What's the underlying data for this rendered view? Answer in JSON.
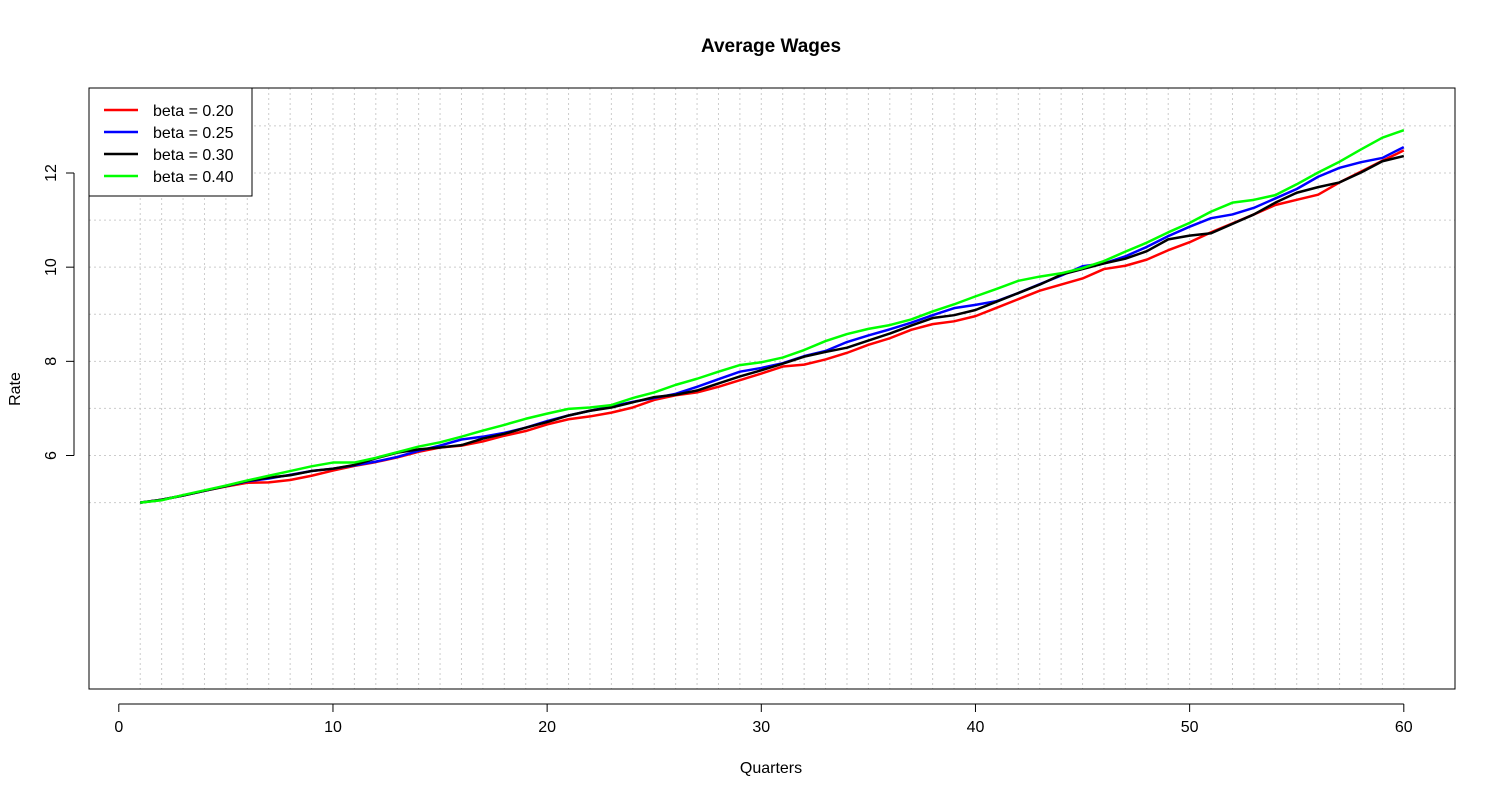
{
  "chart_data": {
    "type": "line",
    "title": "Average Wages",
    "xlabel": "Quarters",
    "ylabel": "Rate",
    "xlim": [
      1,
      60
    ],
    "ylim": [
      5,
      13
    ],
    "x_ticks": [
      0,
      10,
      20,
      30,
      40,
      50,
      60
    ],
    "y_ticks": [
      6,
      8,
      10,
      12
    ],
    "grid": true,
    "legend_position": "top-left",
    "x": [
      1,
      2,
      3,
      4,
      5,
      6,
      7,
      8,
      9,
      10,
      11,
      12,
      13,
      14,
      15,
      16,
      17,
      18,
      19,
      20,
      21,
      22,
      23,
      24,
      25,
      26,
      27,
      28,
      29,
      30,
      31,
      32,
      33,
      34,
      35,
      36,
      37,
      38,
      39,
      40,
      41,
      42,
      43,
      44,
      45,
      46,
      47,
      48,
      49,
      50,
      51,
      52,
      53,
      54,
      55,
      56,
      57,
      58,
      59,
      60
    ],
    "series": [
      {
        "name": "beta = 0.20",
        "color": "#ff0000",
        "values": [
          5.0,
          5.06,
          5.15,
          5.25,
          5.34,
          5.42,
          5.43,
          5.48,
          5.57,
          5.68,
          5.78,
          5.86,
          5.96,
          6.08,
          6.17,
          6.21,
          6.3,
          6.42,
          6.52,
          6.66,
          6.77,
          6.83,
          6.91,
          7.02,
          7.18,
          7.28,
          7.34,
          7.46,
          7.6,
          7.74,
          7.89,
          7.93,
          8.04,
          8.18,
          8.35,
          8.49,
          8.67,
          8.79,
          8.85,
          8.96,
          9.14,
          9.32,
          9.5,
          9.63,
          9.76,
          9.96,
          10.03,
          10.16,
          10.36,
          10.53,
          10.74,
          10.93,
          11.12,
          11.32,
          11.43,
          11.54,
          11.8,
          12.03,
          12.26,
          12.48
        ]
      },
      {
        "name": "beta = 0.25",
        "color": "#0000ff",
        "values": [
          5.0,
          5.06,
          5.15,
          5.25,
          5.35,
          5.45,
          5.51,
          5.59,
          5.67,
          5.72,
          5.79,
          5.87,
          5.97,
          6.1,
          6.21,
          6.34,
          6.4,
          6.48,
          6.59,
          6.73,
          6.85,
          6.95,
          7.04,
          7.14,
          7.22,
          7.31,
          7.46,
          7.62,
          7.78,
          7.86,
          7.96,
          8.11,
          8.22,
          8.41,
          8.55,
          8.68,
          8.82,
          8.98,
          9.13,
          9.2,
          9.28,
          9.45,
          9.64,
          9.82,
          10.02,
          10.08,
          10.23,
          10.43,
          10.66,
          10.86,
          11.04,
          11.12,
          11.26,
          11.46,
          11.66,
          11.92,
          12.11,
          12.23,
          12.32,
          12.55
        ]
      },
      {
        "name": "beta = 0.30",
        "color": "#000000",
        "values": [
          5.0,
          5.06,
          5.15,
          5.25,
          5.35,
          5.46,
          5.53,
          5.58,
          5.67,
          5.72,
          5.8,
          5.94,
          6.06,
          6.13,
          6.17,
          6.22,
          6.36,
          6.46,
          6.59,
          6.71,
          6.85,
          6.95,
          7.02,
          7.13,
          7.24,
          7.29,
          7.38,
          7.53,
          7.68,
          7.81,
          7.95,
          8.1,
          8.2,
          8.29,
          8.44,
          8.59,
          8.76,
          8.92,
          8.98,
          9.09,
          9.27,
          9.45,
          9.63,
          9.84,
          9.96,
          10.08,
          10.18,
          10.34,
          10.59,
          10.67,
          10.72,
          10.92,
          11.12,
          11.37,
          11.58,
          11.7,
          11.8,
          12.01,
          12.25,
          12.36
        ]
      },
      {
        "name": "beta = 0.40",
        "color": "#00ff00",
        "values": [
          5.0,
          5.05,
          5.16,
          5.26,
          5.36,
          5.47,
          5.57,
          5.67,
          5.77,
          5.85,
          5.85,
          5.95,
          6.07,
          6.19,
          6.28,
          6.4,
          6.53,
          6.65,
          6.78,
          6.89,
          6.99,
          7.02,
          7.07,
          7.22,
          7.34,
          7.5,
          7.63,
          7.78,
          7.92,
          7.98,
          8.08,
          8.24,
          8.43,
          8.58,
          8.69,
          8.77,
          8.89,
          9.06,
          9.21,
          9.38,
          9.54,
          9.71,
          9.8,
          9.87,
          9.98,
          10.13,
          10.33,
          10.52,
          10.74,
          10.94,
          11.18,
          11.37,
          11.43,
          11.53,
          11.76,
          12.01,
          12.24,
          12.5,
          12.75,
          12.91
        ]
      }
    ]
  }
}
